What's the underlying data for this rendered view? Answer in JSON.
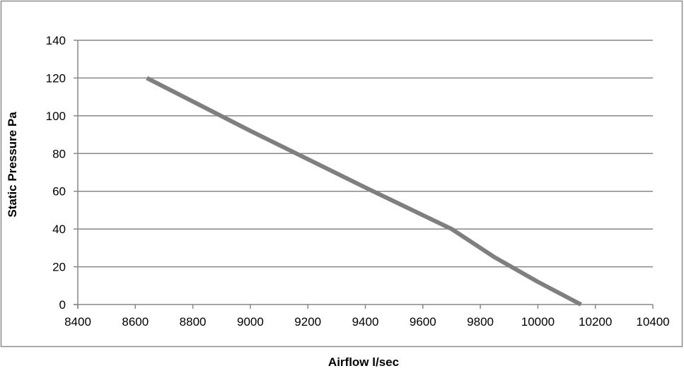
{
  "chart_data": {
    "type": "line",
    "title": "",
    "xlabel": "Airflow l/sec",
    "ylabel": "Static Pressure Pa",
    "xlim": [
      8400,
      10400
    ],
    "ylim": [
      0,
      140
    ],
    "x_ticks": [
      8400,
      8600,
      8800,
      9000,
      9200,
      9400,
      9600,
      9800,
      10000,
      10200,
      10400
    ],
    "y_ticks": [
      0,
      20,
      40,
      60,
      80,
      100,
      120,
      140
    ],
    "grid": "horizontal",
    "legend": "none",
    "series": [
      {
        "color": "#7f7f7f",
        "x": [
          8640,
          9000,
          9400,
          9700,
          9850,
          10000,
          10150
        ],
        "y": [
          120,
          92,
          62,
          40,
          25,
          12,
          0
        ]
      }
    ]
  },
  "colors": {
    "grid": "#878787",
    "axis": "#878787",
    "frame": "#8c8c8c",
    "series": "#7f7f7f"
  }
}
